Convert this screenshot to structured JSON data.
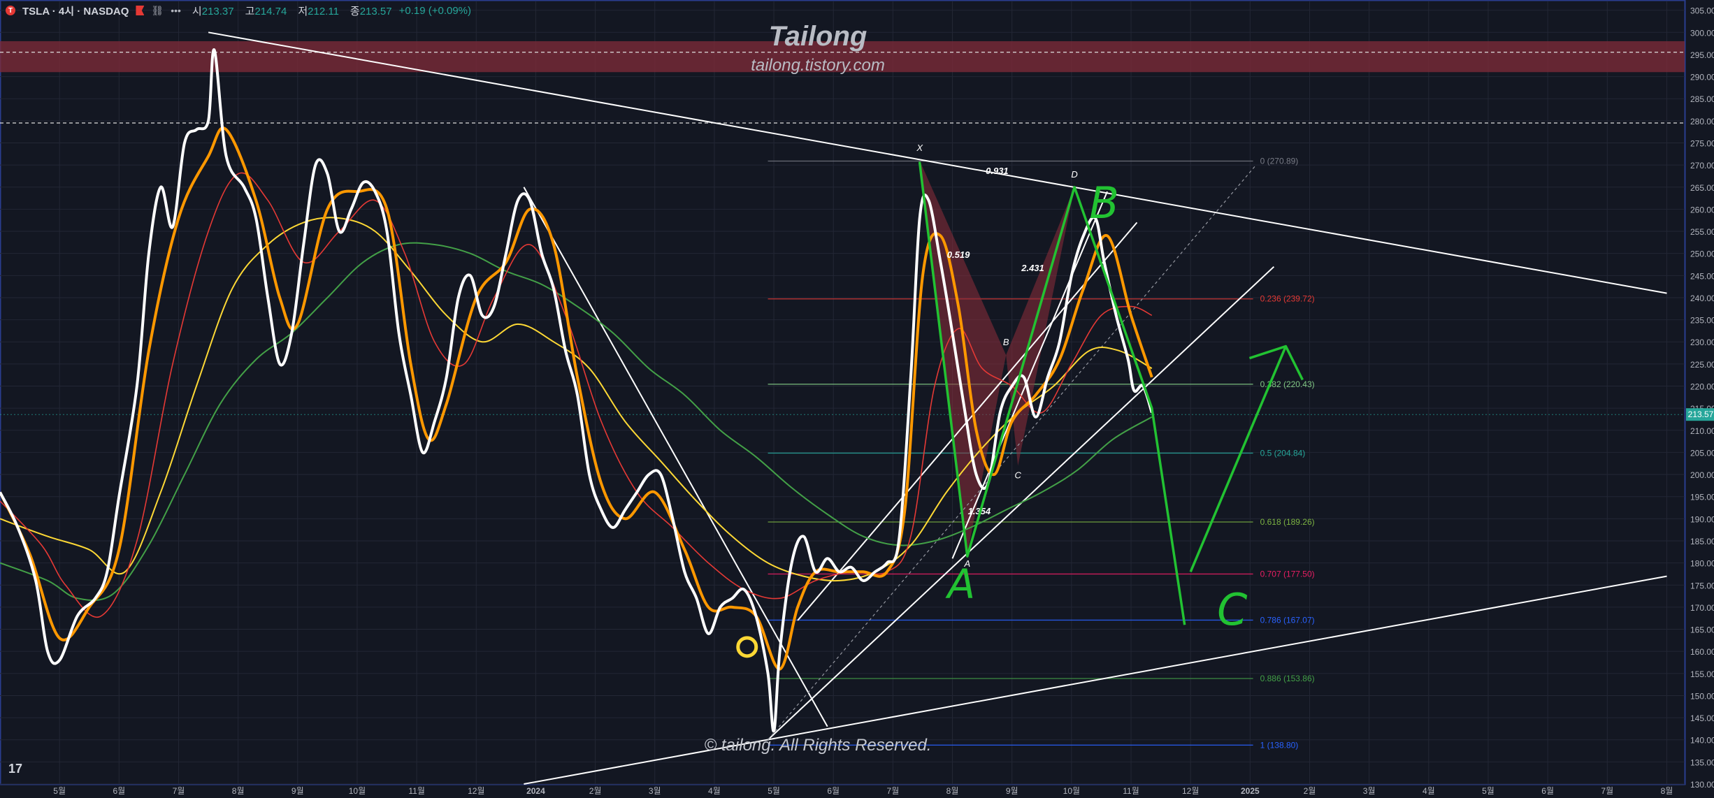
{
  "header": {
    "symbol_icon": "T",
    "symbol": "TSLA · 4시 · NASDAQ",
    "icons": [
      "flag-icon",
      "link-icon",
      "more-icon"
    ],
    "open_label": "시",
    "open_value": "213.37",
    "high_label": "고",
    "high_value": "214.74",
    "low_label": "저",
    "low_value": "212.11",
    "close_label": "종",
    "close_value": "213.57",
    "change": "+0.19 (+0.09%)"
  },
  "watermark": {
    "title": "Tailong",
    "url": "tailong.tistory.com"
  },
  "copyright": "© tailong. All Rights Reserved.",
  "tv_logo": "17",
  "colors": {
    "background": "#131722",
    "price_line": "#ffffff",
    "ema_orange": "#ff9800",
    "ma_red": "#e53935",
    "ma_yellow": "#fdd835",
    "ma_green": "#43a047",
    "drawing_green": "#22c232",
    "resistance_zone": "#7a2a38",
    "harmonic_fill": "#8e2e3b"
  },
  "chart_data": {
    "type": "line",
    "title": "",
    "ylim": [
      130,
      307
    ],
    "y_ticks": [
      "130.00",
      "135.00",
      "140.00",
      "145.00",
      "150.00",
      "155.00",
      "160.00",
      "165.00",
      "170.00",
      "175.00",
      "180.00",
      "185.00",
      "190.00",
      "195.00",
      "200.00",
      "205.00",
      "210.00",
      "215.00",
      "220.00",
      "225.00",
      "230.00",
      "235.00",
      "240.00",
      "245.00",
      "250.00",
      "255.00",
      "260.00",
      "265.00",
      "270.00",
      "275.00",
      "280.00",
      "285.00",
      "290.00",
      "295.00",
      "300.00",
      "305.00"
    ],
    "x_ticks": [
      {
        "label": "5월",
        "t": 0.5
      },
      {
        "label": "6월",
        "t": 1.5
      },
      {
        "label": "7월",
        "t": 2.5
      },
      {
        "label": "8월",
        "t": 3.5
      },
      {
        "label": "9월",
        "t": 4.5
      },
      {
        "label": "10월",
        "t": 5.5
      },
      {
        "label": "11월",
        "t": 6.5
      },
      {
        "label": "12월",
        "t": 7.5
      },
      {
        "label": "2024",
        "t": 8.5
      },
      {
        "label": "2월",
        "t": 9.5
      },
      {
        "label": "3월",
        "t": 10.5
      },
      {
        "label": "4월",
        "t": 11.5
      },
      {
        "label": "5월",
        "t": 12.5
      },
      {
        "label": "6월",
        "t": 13.5
      },
      {
        "label": "7월",
        "t": 14.5
      },
      {
        "label": "8월",
        "t": 15.5
      },
      {
        "label": "9월",
        "t": 16.5
      },
      {
        "label": "10월",
        "t": 17.5
      },
      {
        "label": "11월",
        "t": 18.5
      },
      {
        "label": "12월",
        "t": 19.5
      },
      {
        "label": "2025",
        "t": 20.5
      },
      {
        "label": "2월",
        "t": 21.5
      },
      {
        "label": "3월",
        "t": 22.5
      },
      {
        "label": "4월",
        "t": 23.5
      },
      {
        "label": "5월",
        "t": 24.5
      },
      {
        "label": "6월",
        "t": 25.5
      },
      {
        "label": "7월",
        "t": 26.5
      },
      {
        "label": "8월",
        "t": 27.5
      }
    ],
    "price_series": {
      "name": "",
      "points": [
        [
          -0.5,
          196
        ],
        [
          -0.2,
          188
        ],
        [
          0.1,
          176
        ],
        [
          0.3,
          160
        ],
        [
          0.5,
          158
        ],
        [
          0.8,
          168
        ],
        [
          1.1,
          172
        ],
        [
          1.3,
          178
        ],
        [
          1.5,
          195
        ],
        [
          1.8,
          220
        ],
        [
          2.0,
          250
        ],
        [
          2.2,
          265
        ],
        [
          2.4,
          256
        ],
        [
          2.6,
          275
        ],
        [
          2.8,
          278
        ],
        [
          3.0,
          280
        ],
        [
          3.1,
          296
        ],
        [
          3.3,
          272
        ],
        [
          3.6,
          265
        ],
        [
          3.8,
          258
        ],
        [
          4.0,
          240
        ],
        [
          4.2,
          225
        ],
        [
          4.4,
          232
        ],
        [
          4.6,
          252
        ],
        [
          4.8,
          270
        ],
        [
          5.0,
          268
        ],
        [
          5.2,
          255
        ],
        [
          5.4,
          260
        ],
        [
          5.6,
          266
        ],
        [
          5.8,
          264
        ],
        [
          6.0,
          255
        ],
        [
          6.2,
          232
        ],
        [
          6.4,
          218
        ],
        [
          6.6,
          205
        ],
        [
          6.8,
          212
        ],
        [
          7.0,
          222
        ],
        [
          7.2,
          240
        ],
        [
          7.4,
          245
        ],
        [
          7.6,
          236
        ],
        [
          7.8,
          238
        ],
        [
          8.0,
          250
        ],
        [
          8.2,
          262
        ],
        [
          8.4,
          262
        ],
        [
          8.6,
          250
        ],
        [
          8.8,
          242
        ],
        [
          9.0,
          228
        ],
        [
          9.2,
          218
        ],
        [
          9.4,
          200
        ],
        [
          9.6,
          192
        ],
        [
          9.8,
          188
        ],
        [
          10.0,
          192
        ],
        [
          10.2,
          196
        ],
        [
          10.4,
          200
        ],
        [
          10.6,
          200
        ],
        [
          10.8,
          190
        ],
        [
          11.0,
          178
        ],
        [
          11.2,
          172
        ],
        [
          11.4,
          164
        ],
        [
          11.6,
          170
        ],
        [
          11.8,
          172
        ],
        [
          12.0,
          174
        ],
        [
          12.2,
          168
        ],
        [
          12.4,
          155
        ],
        [
          12.5,
          142
        ],
        [
          12.6,
          160
        ],
        [
          12.8,
          180
        ],
        [
          13.0,
          186
        ],
        [
          13.2,
          178
        ],
        [
          13.4,
          181
        ],
        [
          13.6,
          178
        ],
        [
          13.8,
          179
        ],
        [
          14.0,
          176
        ],
        [
          14.2,
          178
        ],
        [
          14.4,
          180
        ],
        [
          14.6,
          185
        ],
        [
          14.8,
          222
        ],
        [
          14.95,
          258
        ],
        [
          15.1,
          262
        ],
        [
          15.3,
          248
        ],
        [
          15.5,
          232
        ],
        [
          15.7,
          215
        ],
        [
          15.9,
          200
        ],
        [
          16.1,
          198
        ],
        [
          16.3,
          214
        ],
        [
          16.5,
          220
        ],
        [
          16.7,
          222
        ],
        [
          16.9,
          213
        ],
        [
          17.1,
          222
        ],
        [
          17.3,
          230
        ],
        [
          17.5,
          245
        ],
        [
          17.7,
          254
        ],
        [
          17.9,
          258
        ],
        [
          18.05,
          248
        ],
        [
          18.25,
          236
        ],
        [
          18.45,
          226
        ],
        [
          18.55,
          219
        ],
        [
          18.7,
          220
        ],
        [
          18.85,
          214
        ]
      ]
    },
    "ema_orange": [
      [
        -0.5,
        196
      ],
      [
        0,
        182
      ],
      [
        0.5,
        163
      ],
      [
        1.0,
        170
      ],
      [
        1.5,
        183
      ],
      [
        2.0,
        228
      ],
      [
        2.5,
        258
      ],
      [
        3.0,
        272
      ],
      [
        3.3,
        278
      ],
      [
        3.8,
        262
      ],
      [
        4.2,
        240
      ],
      [
        4.5,
        234
      ],
      [
        5.0,
        260
      ],
      [
        5.5,
        264
      ],
      [
        6.0,
        260
      ],
      [
        6.4,
        225
      ],
      [
        6.7,
        208
      ],
      [
        7.0,
        216
      ],
      [
        7.5,
        240
      ],
      [
        8.0,
        248
      ],
      [
        8.4,
        260
      ],
      [
        8.8,
        252
      ],
      [
        9.2,
        222
      ],
      [
        9.6,
        198
      ],
      [
        10.0,
        190
      ],
      [
        10.5,
        196
      ],
      [
        11.0,
        183
      ],
      [
        11.4,
        170
      ],
      [
        11.8,
        170
      ],
      [
        12.2,
        168
      ],
      [
        12.6,
        156
      ],
      [
        12.9,
        170
      ],
      [
        13.2,
        178
      ],
      [
        13.6,
        178
      ],
      [
        14.0,
        178
      ],
      [
        14.4,
        178
      ],
      [
        14.7,
        192
      ],
      [
        15.0,
        245
      ],
      [
        15.3,
        254
      ],
      [
        15.6,
        238
      ],
      [
        15.9,
        210
      ],
      [
        16.2,
        200
      ],
      [
        16.5,
        212
      ],
      [
        16.9,
        218
      ],
      [
        17.3,
        226
      ],
      [
        17.7,
        242
      ],
      [
        18.1,
        254
      ],
      [
        18.5,
        236
      ],
      [
        18.85,
        222
      ]
    ],
    "ma_red": [
      [
        -0.5,
        194
      ],
      [
        0.2,
        184
      ],
      [
        0.6,
        175
      ],
      [
        1.2,
        168
      ],
      [
        1.8,
        185
      ],
      [
        2.4,
        225
      ],
      [
        3.0,
        255
      ],
      [
        3.5,
        268
      ],
      [
        4.0,
        262
      ],
      [
        4.6,
        248
      ],
      [
        5.2,
        255
      ],
      [
        5.8,
        262
      ],
      [
        6.3,
        250
      ],
      [
        6.8,
        230
      ],
      [
        7.3,
        225
      ],
      [
        7.8,
        240
      ],
      [
        8.4,
        252
      ],
      [
        9.0,
        236
      ],
      [
        9.6,
        212
      ],
      [
        10.2,
        196
      ],
      [
        10.8,
        188
      ],
      [
        11.4,
        180
      ],
      [
        12.0,
        174
      ],
      [
        12.6,
        172
      ],
      [
        13.2,
        176
      ],
      [
        13.8,
        178
      ],
      [
        14.4,
        178
      ],
      [
        14.8,
        186
      ],
      [
        15.2,
        220
      ],
      [
        15.6,
        233
      ],
      [
        16.0,
        224
      ],
      [
        16.5,
        220
      ],
      [
        17.0,
        214
      ],
      [
        17.5,
        225
      ],
      [
        18.0,
        236
      ],
      [
        18.5,
        238
      ],
      [
        18.85,
        236
      ]
    ],
    "ma_yellow": [
      [
        -0.5,
        190
      ],
      [
        0.3,
        186
      ],
      [
        1.0,
        183
      ],
      [
        1.6,
        178
      ],
      [
        2.2,
        196
      ],
      [
        2.8,
        220
      ],
      [
        3.4,
        242
      ],
      [
        4.0,
        252
      ],
      [
        4.6,
        257
      ],
      [
        5.2,
        258
      ],
      [
        5.8,
        255
      ],
      [
        6.4,
        246
      ],
      [
        7.0,
        236
      ],
      [
        7.6,
        230
      ],
      [
        8.2,
        234
      ],
      [
        8.8,
        230
      ],
      [
        9.4,
        224
      ],
      [
        10.0,
        212
      ],
      [
        10.6,
        203
      ],
      [
        11.2,
        194
      ],
      [
        11.8,
        186
      ],
      [
        12.4,
        180
      ],
      [
        13.0,
        177
      ],
      [
        13.6,
        176
      ],
      [
        14.2,
        178
      ],
      [
        14.8,
        184
      ],
      [
        15.4,
        196
      ],
      [
        16.0,
        206
      ],
      [
        16.6,
        214
      ],
      [
        17.2,
        220
      ],
      [
        17.8,
        228
      ],
      [
        18.3,
        228
      ],
      [
        18.85,
        224
      ]
    ],
    "ma_green": [
      [
        -0.5,
        180
      ],
      [
        0.3,
        176
      ],
      [
        0.8,
        172
      ],
      [
        1.4,
        173
      ],
      [
        2.0,
        184
      ],
      [
        2.6,
        200
      ],
      [
        3.2,
        216
      ],
      [
        3.8,
        226
      ],
      [
        4.4,
        232
      ],
      [
        5.0,
        240
      ],
      [
        5.6,
        248
      ],
      [
        6.2,
        252
      ],
      [
        6.8,
        252
      ],
      [
        7.4,
        250
      ],
      [
        8.0,
        246
      ],
      [
        8.6,
        243
      ],
      [
        9.2,
        238
      ],
      [
        9.8,
        232
      ],
      [
        10.4,
        224
      ],
      [
        11.0,
        218
      ],
      [
        11.6,
        210
      ],
      [
        12.2,
        204
      ],
      [
        12.8,
        197
      ],
      [
        13.4,
        191
      ],
      [
        14.0,
        186
      ],
      [
        14.6,
        184
      ],
      [
        15.2,
        185
      ],
      [
        15.8,
        188
      ],
      [
        16.4,
        192
      ],
      [
        17.0,
        196
      ],
      [
        17.6,
        201
      ],
      [
        18.2,
        208
      ],
      [
        18.85,
        213
      ]
    ],
    "fibonacci": {
      "t_start": 12.4,
      "t_end": 20.55,
      "levels": [
        {
          "label": "0 (270.89)",
          "value": 270.89,
          "color": "#787b86"
        },
        {
          "label": "0.236 (239.72)",
          "value": 239.72,
          "color": "#e53935"
        },
        {
          "label": "0.382 (220.43)",
          "value": 220.43,
          "color": "#81c784"
        },
        {
          "label": "0.5 (204.84)",
          "value": 204.84,
          "color": "#26a69a"
        },
        {
          "label": "0.618 (189.26)",
          "value": 189.26,
          "color": "#7cb342"
        },
        {
          "label": "0.707 (177.50)",
          "value": 177.5,
          "color": "#e91e63"
        },
        {
          "label": "0.786 (167.07)",
          "value": 167.07,
          "color": "#2962ff"
        },
        {
          "label": "0.886 (153.86)",
          "value": 153.86,
          "color": "#43a047"
        },
        {
          "label": "1 (138.80)",
          "value": 138.8,
          "color": "#2962ff"
        }
      ]
    },
    "harmonic": {
      "points": [
        {
          "label": "X",
          "t": 14.95,
          "value": 271
        },
        {
          "label": "A",
          "t": 15.75,
          "value": 182
        },
        {
          "label": "B",
          "t": 16.4,
          "value": 227
        },
        {
          "label": "C",
          "t": 16.6,
          "value": 202
        },
        {
          "label": "D",
          "t": 17.55,
          "value": 265
        }
      ],
      "ratios": [
        {
          "label": "0.519",
          "t": 15.6,
          "value": 249
        },
        {
          "label": "0.931",
          "t": 16.25,
          "value": 268
        },
        {
          "label": "2.431",
          "t": 16.85,
          "value": 246
        },
        {
          "label": "1.354",
          "t": 15.95,
          "value": 191
        }
      ]
    },
    "trendlines": [
      {
        "name": "upper-resistance",
        "points": [
          [
            3.0,
            300
          ],
          [
            27.5,
            241
          ]
        ]
      },
      {
        "name": "lower-support",
        "points": [
          [
            8.3,
            130
          ],
          [
            27.5,
            177
          ]
        ]
      },
      {
        "name": "downtrend",
        "points": [
          [
            8.3,
            265
          ],
          [
            13.4,
            143
          ]
        ]
      },
      {
        "name": "fan-1",
        "points": [
          [
            12.4,
            140
          ],
          [
            20.9,
            247
          ]
        ]
      },
      {
        "name": "fan-2",
        "points": [
          [
            12.9,
            167
          ],
          [
            18.6,
            257
          ]
        ]
      },
      {
        "name": "fan-3",
        "points": [
          [
            15.5,
            181
          ],
          [
            18.1,
            264
          ]
        ]
      },
      {
        "name": "fan-dashed",
        "points": [
          [
            12.4,
            140
          ],
          [
            20.6,
            270
          ]
        ]
      }
    ],
    "horizontal_lines": [
      295.5,
      279.5
    ],
    "resistance_zone": [
      291,
      298
    ],
    "projection_path": [
      [
        15.75,
        181.5
      ],
      [
        14.95,
        270.5
      ],
      [
        15.75,
        181.5
      ],
      [
        17.55,
        265
      ],
      [
        18.85,
        215
      ],
      [
        19.4,
        166
      ]
    ],
    "projection_arrow": [
      [
        19.5,
        178
      ],
      [
        21.1,
        229
      ]
    ],
    "handwritten_letters": [
      "A",
      "B",
      "C"
    ],
    "highlight_circle": {
      "t": 12.05,
      "value": 161
    },
    "current_price": {
      "value": 213.57,
      "label": "213.57"
    },
    "x_range": [
      -0.5,
      27.8
    ]
  }
}
